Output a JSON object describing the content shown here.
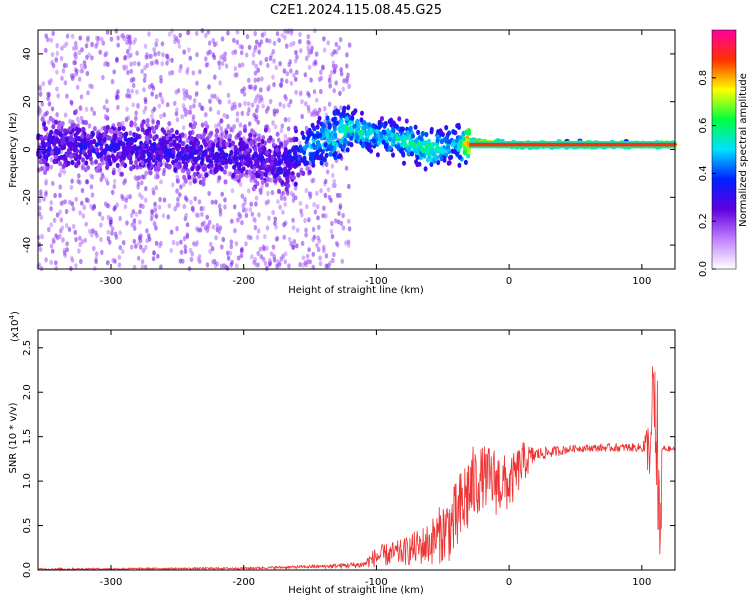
{
  "title": "C2E1.2024.115.08.45.G25",
  "chart_data": [
    {
      "type": "heatmap",
      "xlabel": "Height of straight line (km)",
      "ylabel": "Frequency (Hz)",
      "xlim": [
        -355,
        125
      ],
      "ylim": [
        -50,
        50
      ],
      "x_ticks": [
        -300,
        -200,
        -100,
        0,
        100
      ],
      "y_ticks": [
        -40,
        -20,
        0,
        20,
        40
      ],
      "colorbar": {
        "label": "Normalized spectral amplitude",
        "range": [
          0,
          1
        ],
        "ticks": [
          "0.0",
          "0.2",
          "0.4",
          "0.6",
          "0.8"
        ],
        "stops": [
          "#ffffff",
          "#c080ff",
          "#6000e0",
          "#0020ff",
          "#00e0ff",
          "#00ff40",
          "#ffff00",
          "#ff3000",
          "#ff00a0"
        ]
      },
      "ridge": [
        {
          "x": -355,
          "f": 2,
          "amp": 0.3
        },
        {
          "x": -300,
          "f": 1,
          "amp": 0.3
        },
        {
          "x": -250,
          "f": -1,
          "amp": 0.3
        },
        {
          "x": -200,
          "f": -3,
          "amp": 0.28
        },
        {
          "x": -170,
          "f": -6,
          "amp": 0.3
        },
        {
          "x": -150,
          "f": 2,
          "amp": 0.45
        },
        {
          "x": -120,
          "f": 8,
          "amp": 0.55
        },
        {
          "x": -100,
          "f": 6,
          "amp": 0.5
        },
        {
          "x": -80,
          "f": 4,
          "amp": 0.55
        },
        {
          "x": -60,
          "f": 0,
          "amp": 0.6
        },
        {
          "x": -40,
          "f": 2,
          "amp": 0.45
        },
        {
          "x": -30,
          "f": 3,
          "amp": 0.9
        },
        {
          "x": 0,
          "f": 2,
          "amp": 0.9
        },
        {
          "x": 100,
          "f": 2,
          "amp": 0.9
        },
        {
          "x": 125,
          "f": 2,
          "amp": 0.85
        }
      ]
    },
    {
      "type": "line",
      "xlabel": "Height of straight line (km)",
      "ylabel": "SNR (10 * v/v)",
      "scale_note": "(x10",
      "scale_exp": "4",
      "scale_close": ")",
      "xlim": [
        -355,
        125
      ],
      "ylim": [
        0,
        2.7
      ],
      "x_ticks": [
        -300,
        -200,
        -100,
        0,
        100
      ],
      "y_ticks": [
        "0.0",
        "0.5",
        "1.0",
        "1.5",
        "2.0",
        "2.5"
      ],
      "color": "#ee3333",
      "envelope": [
        {
          "x": -355,
          "y": 0.01,
          "noise": 0.01
        },
        {
          "x": -200,
          "y": 0.02,
          "noise": 0.01
        },
        {
          "x": -140,
          "y": 0.04,
          "noise": 0.02
        },
        {
          "x": -110,
          "y": 0.06,
          "noise": 0.04
        },
        {
          "x": -100,
          "y": 0.15,
          "noise": 0.12
        },
        {
          "x": -80,
          "y": 0.2,
          "noise": 0.15
        },
        {
          "x": -60,
          "y": 0.3,
          "noise": 0.25
        },
        {
          "x": -40,
          "y": 0.55,
          "noise": 0.45
        },
        {
          "x": -30,
          "y": 0.9,
          "noise": 0.5
        },
        {
          "x": -20,
          "y": 1.05,
          "noise": 0.35
        },
        {
          "x": -10,
          "y": 1.0,
          "noise": 0.4
        },
        {
          "x": 0,
          "y": 0.95,
          "noise": 0.3
        },
        {
          "x": 10,
          "y": 1.2,
          "noise": 0.25
        },
        {
          "x": 20,
          "y": 1.3,
          "noise": 0.08
        },
        {
          "x": 50,
          "y": 1.37,
          "noise": 0.04
        },
        {
          "x": 100,
          "y": 1.38,
          "noise": 0.05
        },
        {
          "x": 110,
          "y": 1.4,
          "noise": 0.6
        },
        {
          "x": 114,
          "y": 0.5,
          "noise": 0.5
        },
        {
          "x": 115,
          "y": 1.36,
          "noise": 0.05
        },
        {
          "x": 125,
          "y": 1.36,
          "noise": 0.02
        }
      ]
    }
  ]
}
